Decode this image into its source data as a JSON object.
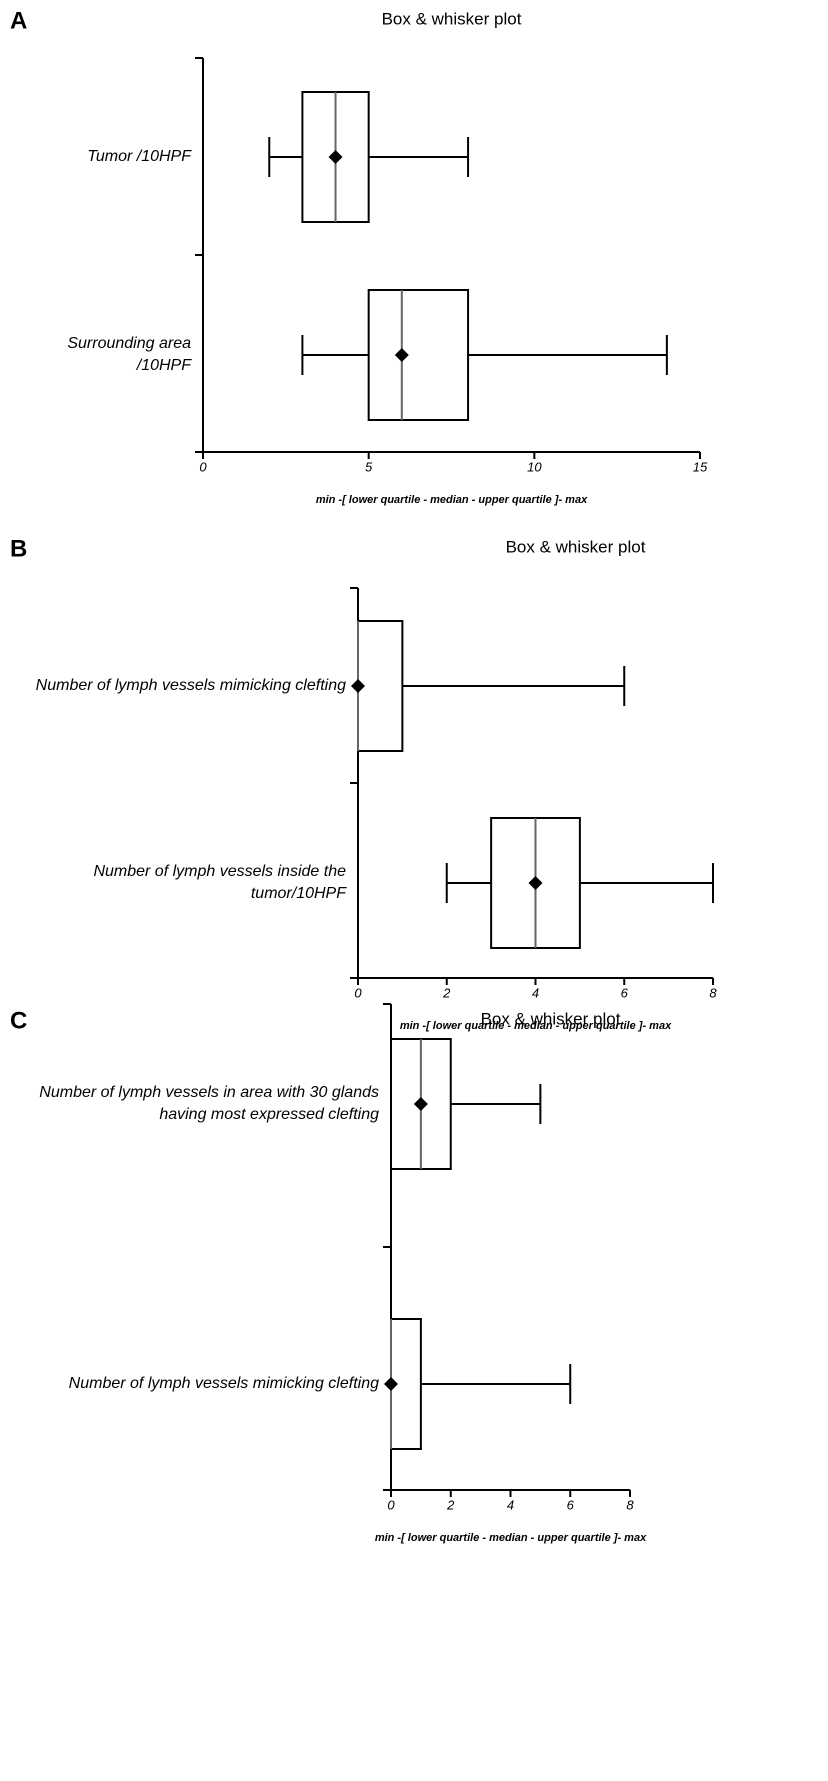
{
  "chart_data": [
    {
      "type": "box",
      "panel": "A",
      "title": "Box & whisker plot",
      "xlabel": "min -[ lower quartile - median - upper quartile ]- max",
      "xlim": [
        0,
        15
      ],
      "xticks": [
        0,
        5,
        10,
        15
      ],
      "color": "#000000",
      "boxes": [
        {
          "name": "Tumor /10HPF",
          "min": 2,
          "q1": 3,
          "median": 4,
          "q3": 5,
          "max": 8,
          "mean": 4
        },
        {
          "name": "Surrounding area\n/10HPF",
          "min": 3,
          "q1": 5,
          "median": 6,
          "q3": 8,
          "max": 14,
          "mean": 6
        }
      ]
    },
    {
      "type": "box",
      "panel": "B",
      "title": "Box & whisker plot",
      "xlabel": "min -[ lower quartile - median - upper quartile ]- max",
      "xlim": [
        0,
        8
      ],
      "xticks": [
        0,
        2,
        4,
        6,
        8
      ],
      "color": "#000000",
      "boxes": [
        {
          "name": "Number of lymph vessels mimicking clefting",
          "min": 0,
          "q1": 0,
          "median": 0,
          "q3": 1,
          "max": 6,
          "mean": 0
        },
        {
          "name": "Number of lymph vessels inside the\ntumor/10HPF",
          "min": 2,
          "q1": 3,
          "median": 4,
          "q3": 5,
          "max": 8,
          "mean": 4
        }
      ]
    },
    {
      "type": "box",
      "panel": "C",
      "title": "Box & whisker plot",
      "xlabel": "min -[ lower quartile - median - upper quartile ]- max",
      "xlim": [
        0,
        8
      ],
      "xticks": [
        0,
        2,
        4,
        6,
        8
      ],
      "color": "#000000",
      "boxes": [
        {
          "name": "Number of lymph vessels in area with 30 glands\nhaving most expressed clefting",
          "min": 0,
          "q1": 0,
          "median": 1,
          "q3": 2,
          "max": 5,
          "mean": 1
        },
        {
          "name": "Number of lymph vessels mimicking clefting",
          "min": 0,
          "q1": 0,
          "median": 0,
          "q3": 1,
          "max": 6,
          "mean": 0
        }
      ]
    }
  ]
}
